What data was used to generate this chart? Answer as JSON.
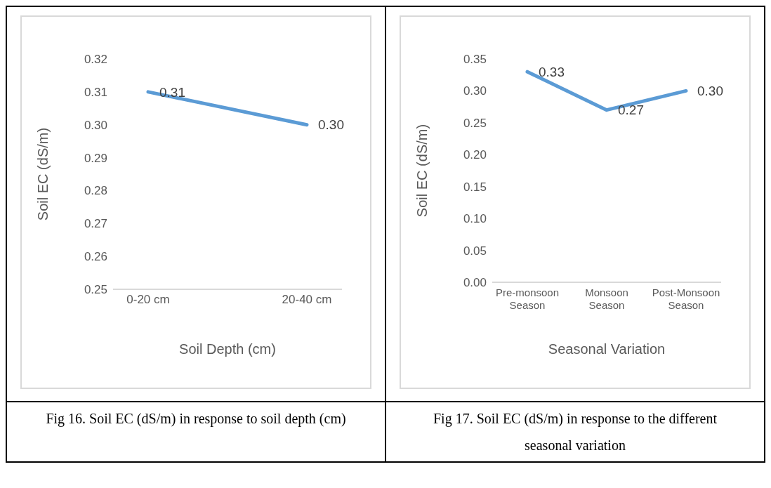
{
  "chart_data": [
    {
      "type": "line",
      "xlabel": "Soil Depth (cm)",
      "ylabel": "Soil EC (dS/m)",
      "categories": [
        "0-20 cm",
        "20-40 cm"
      ],
      "series": [
        {
          "color": "#5b9bd5",
          "values": [
            0.31,
            0.3
          ],
          "value_labels": [
            "0.31",
            "0.30"
          ]
        }
      ],
      "ylim": [
        0.25,
        0.32
      ],
      "yticks": [
        0.25,
        0.26,
        0.27,
        0.28,
        0.29,
        {
          "value": 0.3,
          "label": "0.30"
        },
        0.31,
        0.32
      ],
      "grid": false,
      "legend": false,
      "marker": "none",
      "line_style": "solid",
      "annotations": [
        "Fig 16. Soil EC (dS/m) in response to soil depth (cm)"
      ]
    },
    {
      "type": "line",
      "xlabel": "Seasonal Variation",
      "ylabel": "Soil EC (dS/m)",
      "categories": [
        "Pre-monsoon Season",
        "Monsoon Season",
        "Post-Monsoon Season"
      ],
      "series": [
        {
          "color": "#5b9bd5",
          "values": [
            0.33,
            0.27,
            0.3
          ],
          "value_labels": [
            "0.33",
            "0.27",
            "0.30"
          ]
        }
      ],
      "ylim": [
        0,
        0.35
      ],
      "yticks": [
        {
          "value": 0,
          "label": "0.00"
        },
        0.05,
        {
          "value": 0.1,
          "label": "0.10"
        },
        0.15,
        {
          "value": 0.2,
          "label": "0.20"
        },
        0.25,
        {
          "value": 0.3,
          "label": "0.30"
        },
        0.35
      ],
      "grid": false,
      "legend": false,
      "marker": "none",
      "line_style": "solid",
      "annotations": [
        "Fig 17. Soil EC (dS/m) in response to the different seasonal variation"
      ]
    }
  ]
}
